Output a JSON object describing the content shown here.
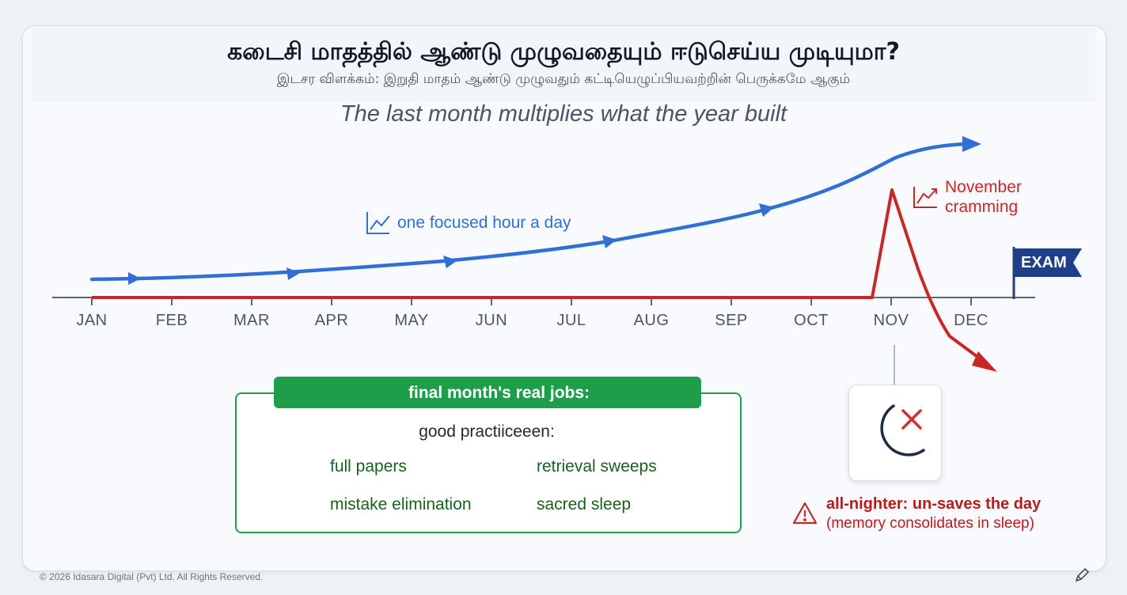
{
  "header": {
    "title": "கடைசி மாதத்தில் ஆண்டு முழுவதையும் ஈடுசெய்ய முடியுமா?",
    "subtitle": "இடசர விளக்கம்: இறுதி மாதம் ஆண்டு முழுவதும் கட்டியெழுப்பியவற்றின் பெருக்கமே ஆகும்",
    "tagline": "The last month multiplies what the year built"
  },
  "timeline": {
    "months": [
      "JAN",
      "FEB",
      "MAR",
      "APR",
      "MAY",
      "JUN",
      "JUL",
      "AUG",
      "SEP",
      "OCT",
      "NOV",
      "DEC"
    ],
    "blue_label": "one focused hour a day",
    "red_label_line1": "November",
    "red_label_line2": "cramming",
    "exam_flag": "EXAM"
  },
  "jobs_panel": {
    "header": "final month's real jobs:",
    "subheading": "good practiiceeen:",
    "items": [
      {
        "label": "full papers",
        "icon": "document-icon"
      },
      {
        "label": "retrieval sweeps",
        "icon": "magnifier-icon"
      },
      {
        "label": "mistake elimination",
        "icon": "x-circle-icon"
      },
      {
        "label": "sacred sleep",
        "icon": "moon-sleep-icon"
      }
    ]
  },
  "warning": {
    "title": "all-nighter: un-saves the day",
    "subtitle": "(memory consolidates in sleep)"
  },
  "colors": {
    "blue": "#2f6fd6",
    "red": "#c62828",
    "green": "#1e9e4a",
    "navy": "#1e3f8a"
  },
  "footer": {
    "copyright": "© 2026 Idasara Digital (Pvt) Ltd. All Rights Reserved."
  }
}
